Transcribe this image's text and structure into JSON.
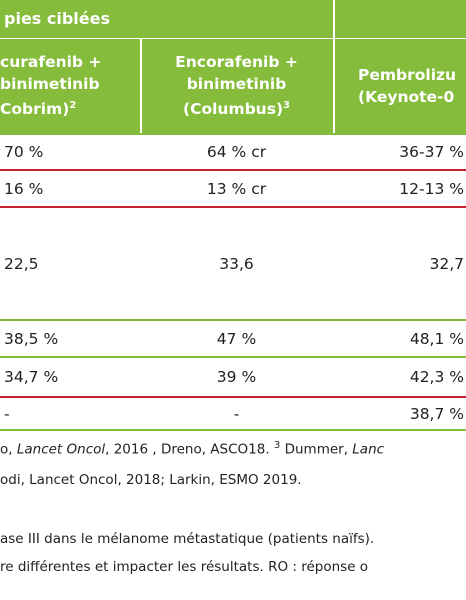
{
  "header": {
    "title": "pies ciblées"
  },
  "table": {
    "columns": [
      {
        "lines": [
          "curafenib +",
          "binimetinib",
          "Cobrim)"
        ],
        "note": "2"
      },
      {
        "lines": [
          "Encorafenib +",
          "binimetinib",
          "(Columbus)"
        ],
        "note": "3"
      },
      {
        "lines": [
          "Pembrolizu",
          "(Keynote-0"
        ]
      }
    ],
    "rows": [
      {
        "cells": [
          "70 %",
          "64 % cr",
          "36-37 %"
        ],
        "border": "#c8202f"
      },
      {
        "cells": [
          "16 %",
          "13 % cr",
          "12-13 %"
        ],
        "border": "#c8202f"
      },
      {
        "cells": [
          "22,5",
          "33,6",
          "32,7"
        ],
        "border": "#86bc3b"
      },
      {
        "cells": [
          "38,5 %",
          "47 %",
          "48,1 %"
        ],
        "border": "#86bc3b"
      },
      {
        "cells": [
          "34,7 %",
          "39 %",
          "42,3 %"
        ],
        "border": "#c8202f"
      },
      {
        "cells": [
          "-",
          "-",
          "38,7 %"
        ],
        "border": "#86bc3b"
      }
    ]
  },
  "footnotes": [
    [
      {
        "text": "o, "
      },
      {
        "text": "Lancet Oncol",
        "italic": true
      },
      {
        "text": ", 2016 , Dreno, ASCO18. "
      },
      {
        "text": "3",
        "sup": true
      },
      {
        "text": " Dummer, "
      },
      {
        "text": "Lanc",
        "italic": true
      }
    ],
    [
      {
        "text": "odi, Lancet Oncol, 2018; Larkin, ESMO 2019."
      }
    ]
  ],
  "caption": [
    "ase III dans le mélanome métastatique (patients naïfs).",
    "re différentes et impacter les résultats. RO : réponse o"
  ]
}
